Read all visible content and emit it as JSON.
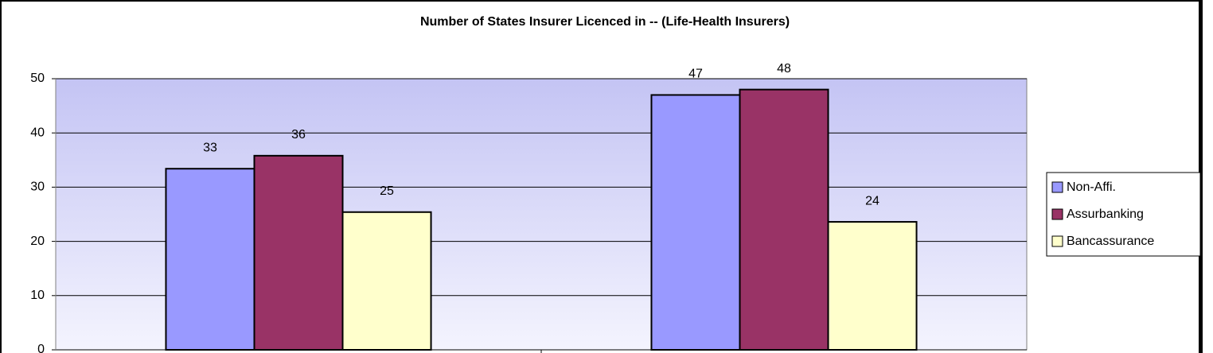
{
  "chart_data": {
    "type": "bar",
    "title": "Number of States Insurer Licenced in -- (Life-Health Insurers)",
    "categories": [
      null,
      null
    ],
    "series": [
      {
        "name": "Non-Affi.",
        "color": "#9999ff",
        "values": [
          33.4,
          47
        ],
        "value_labels": [
          "33",
          "47"
        ]
      },
      {
        "name": "Assurbanking",
        "color": "#993366",
        "values": [
          35.8,
          48
        ],
        "value_labels": [
          "36",
          "48"
        ]
      },
      {
        "name": "Bancassurance",
        "color": "#ffffcc",
        "values": [
          25.4,
          23.6
        ],
        "value_labels": [
          "25",
          "24"
        ]
      }
    ],
    "ylim": [
      0,
      50
    ],
    "yticks": [
      0,
      10,
      20,
      30,
      40,
      50
    ],
    "grid": true,
    "legend": "right"
  }
}
